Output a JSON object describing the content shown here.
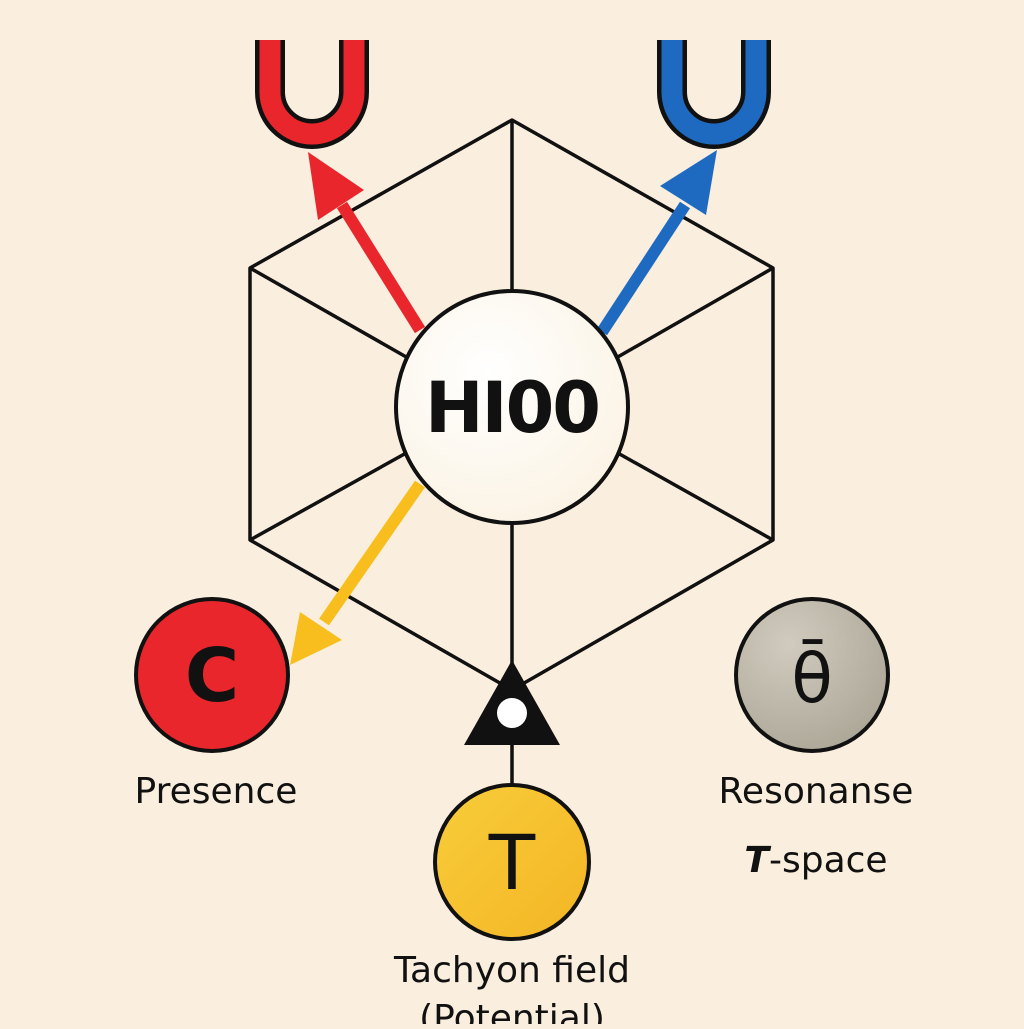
{
  "diagram": {
    "center_node": {
      "label": "HI00"
    },
    "top_left_symbol": {
      "glyph": "U",
      "color": "#E8262C"
    },
    "top_right_symbol": {
      "glyph": "U",
      "color": "#1F6AC1"
    },
    "presence_node": {
      "glyph": "C",
      "label": "Presence",
      "color": "#E8262C"
    },
    "tachyon_node": {
      "glyph": "T",
      "label_line1": "Tachyon field",
      "label_line2": "(Potential)",
      "color": "#F7C531"
    },
    "resonance_node": {
      "glyph": "θ̄",
      "label": "Resonanse",
      "sublabel_italic": "T",
      "sublabel_rest": "-space",
      "color": "#BDB7A8"
    },
    "arrow_colors": {
      "red": "#E8262C",
      "blue": "#1F6AC1",
      "yellow": "#F8BE1E"
    }
  }
}
